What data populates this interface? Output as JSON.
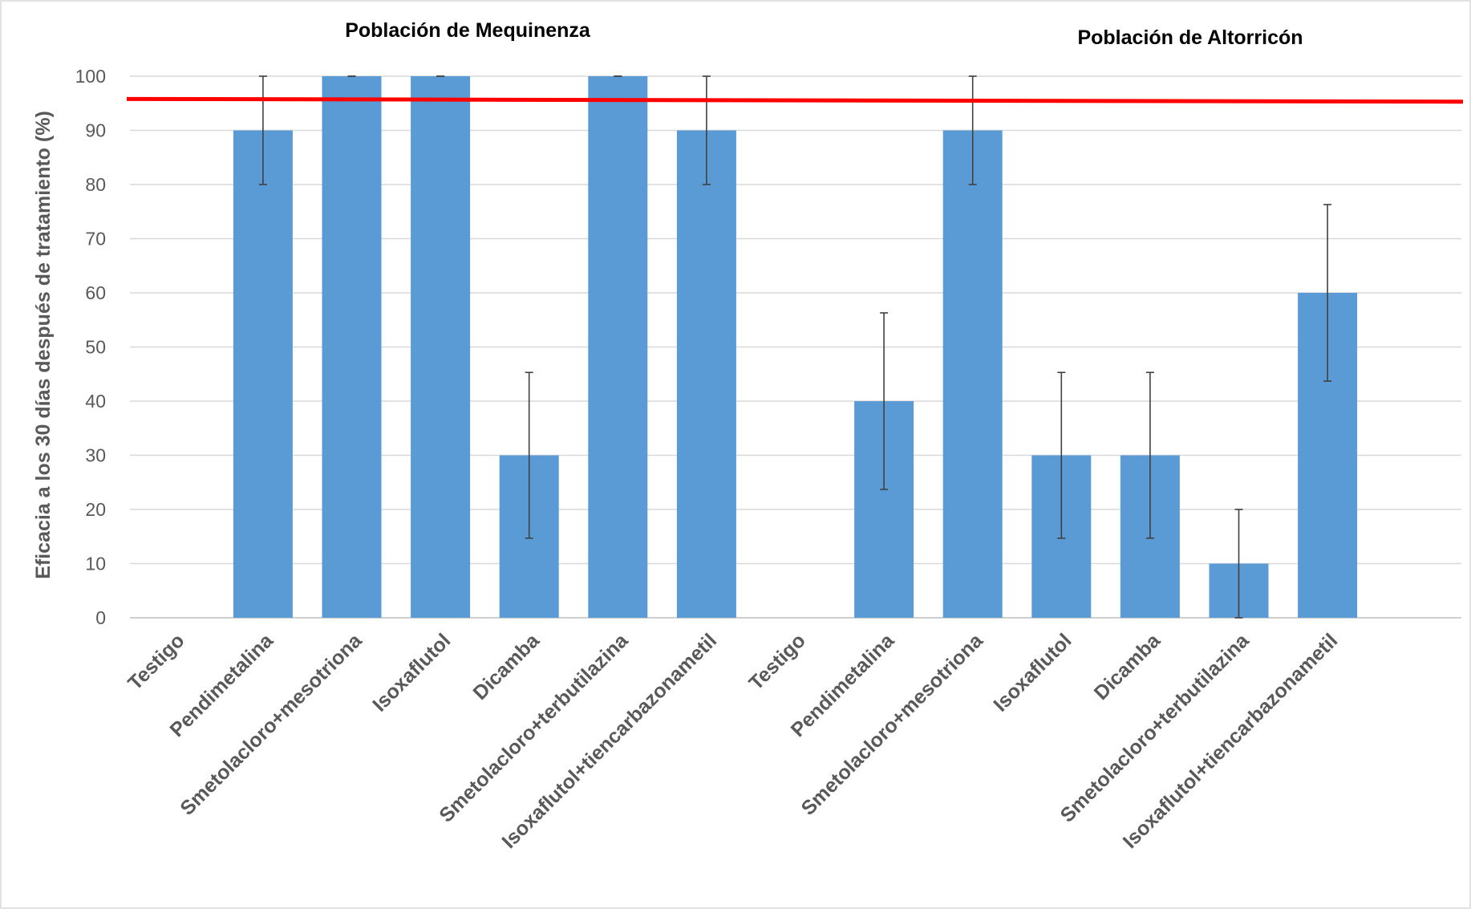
{
  "chart_data": {
    "type": "bar",
    "ylabel": "Eficacia a los 30 días después de tratamiento (%)",
    "ylim": [
      0,
      100
    ],
    "yticks": [
      0,
      10,
      20,
      30,
      40,
      50,
      60,
      70,
      80,
      90,
      100
    ],
    "grid": true,
    "legend": "none",
    "bar_color": "#5b9bd5",
    "reference_line": {
      "color": "#ff0000",
      "y_start": 95.8,
      "y_end": 95.3
    },
    "groups": [
      {
        "title": "Población de Mequinenza",
        "categories": [
          "Testigo",
          "Pendimetalina",
          "Smetolacloro+mesotriona",
          "Isoxaflutol",
          "Dicamba",
          "Smetolacloro+terbutilazina",
          "Isoxaflutol+tiencarbazonametil"
        ],
        "values": [
          0,
          90,
          100,
          100,
          30,
          100,
          90
        ],
        "error": [
          0,
          10,
          0,
          0,
          15.3,
          0,
          10
        ]
      },
      {
        "title": "Población de Altorricón",
        "categories": [
          "Testigo",
          "Pendimetalina",
          "Smetolacloro+mesotriona",
          "Isoxaflutol",
          "Dicamba",
          "Smetolacloro+terbutilazina",
          "Isoxaflutol+tiencarbazonametil"
        ],
        "values": [
          0,
          40,
          90,
          30,
          30,
          10,
          60
        ],
        "error": [
          0,
          16.3,
          10,
          15.3,
          15.3,
          10,
          16.3
        ]
      }
    ]
  }
}
